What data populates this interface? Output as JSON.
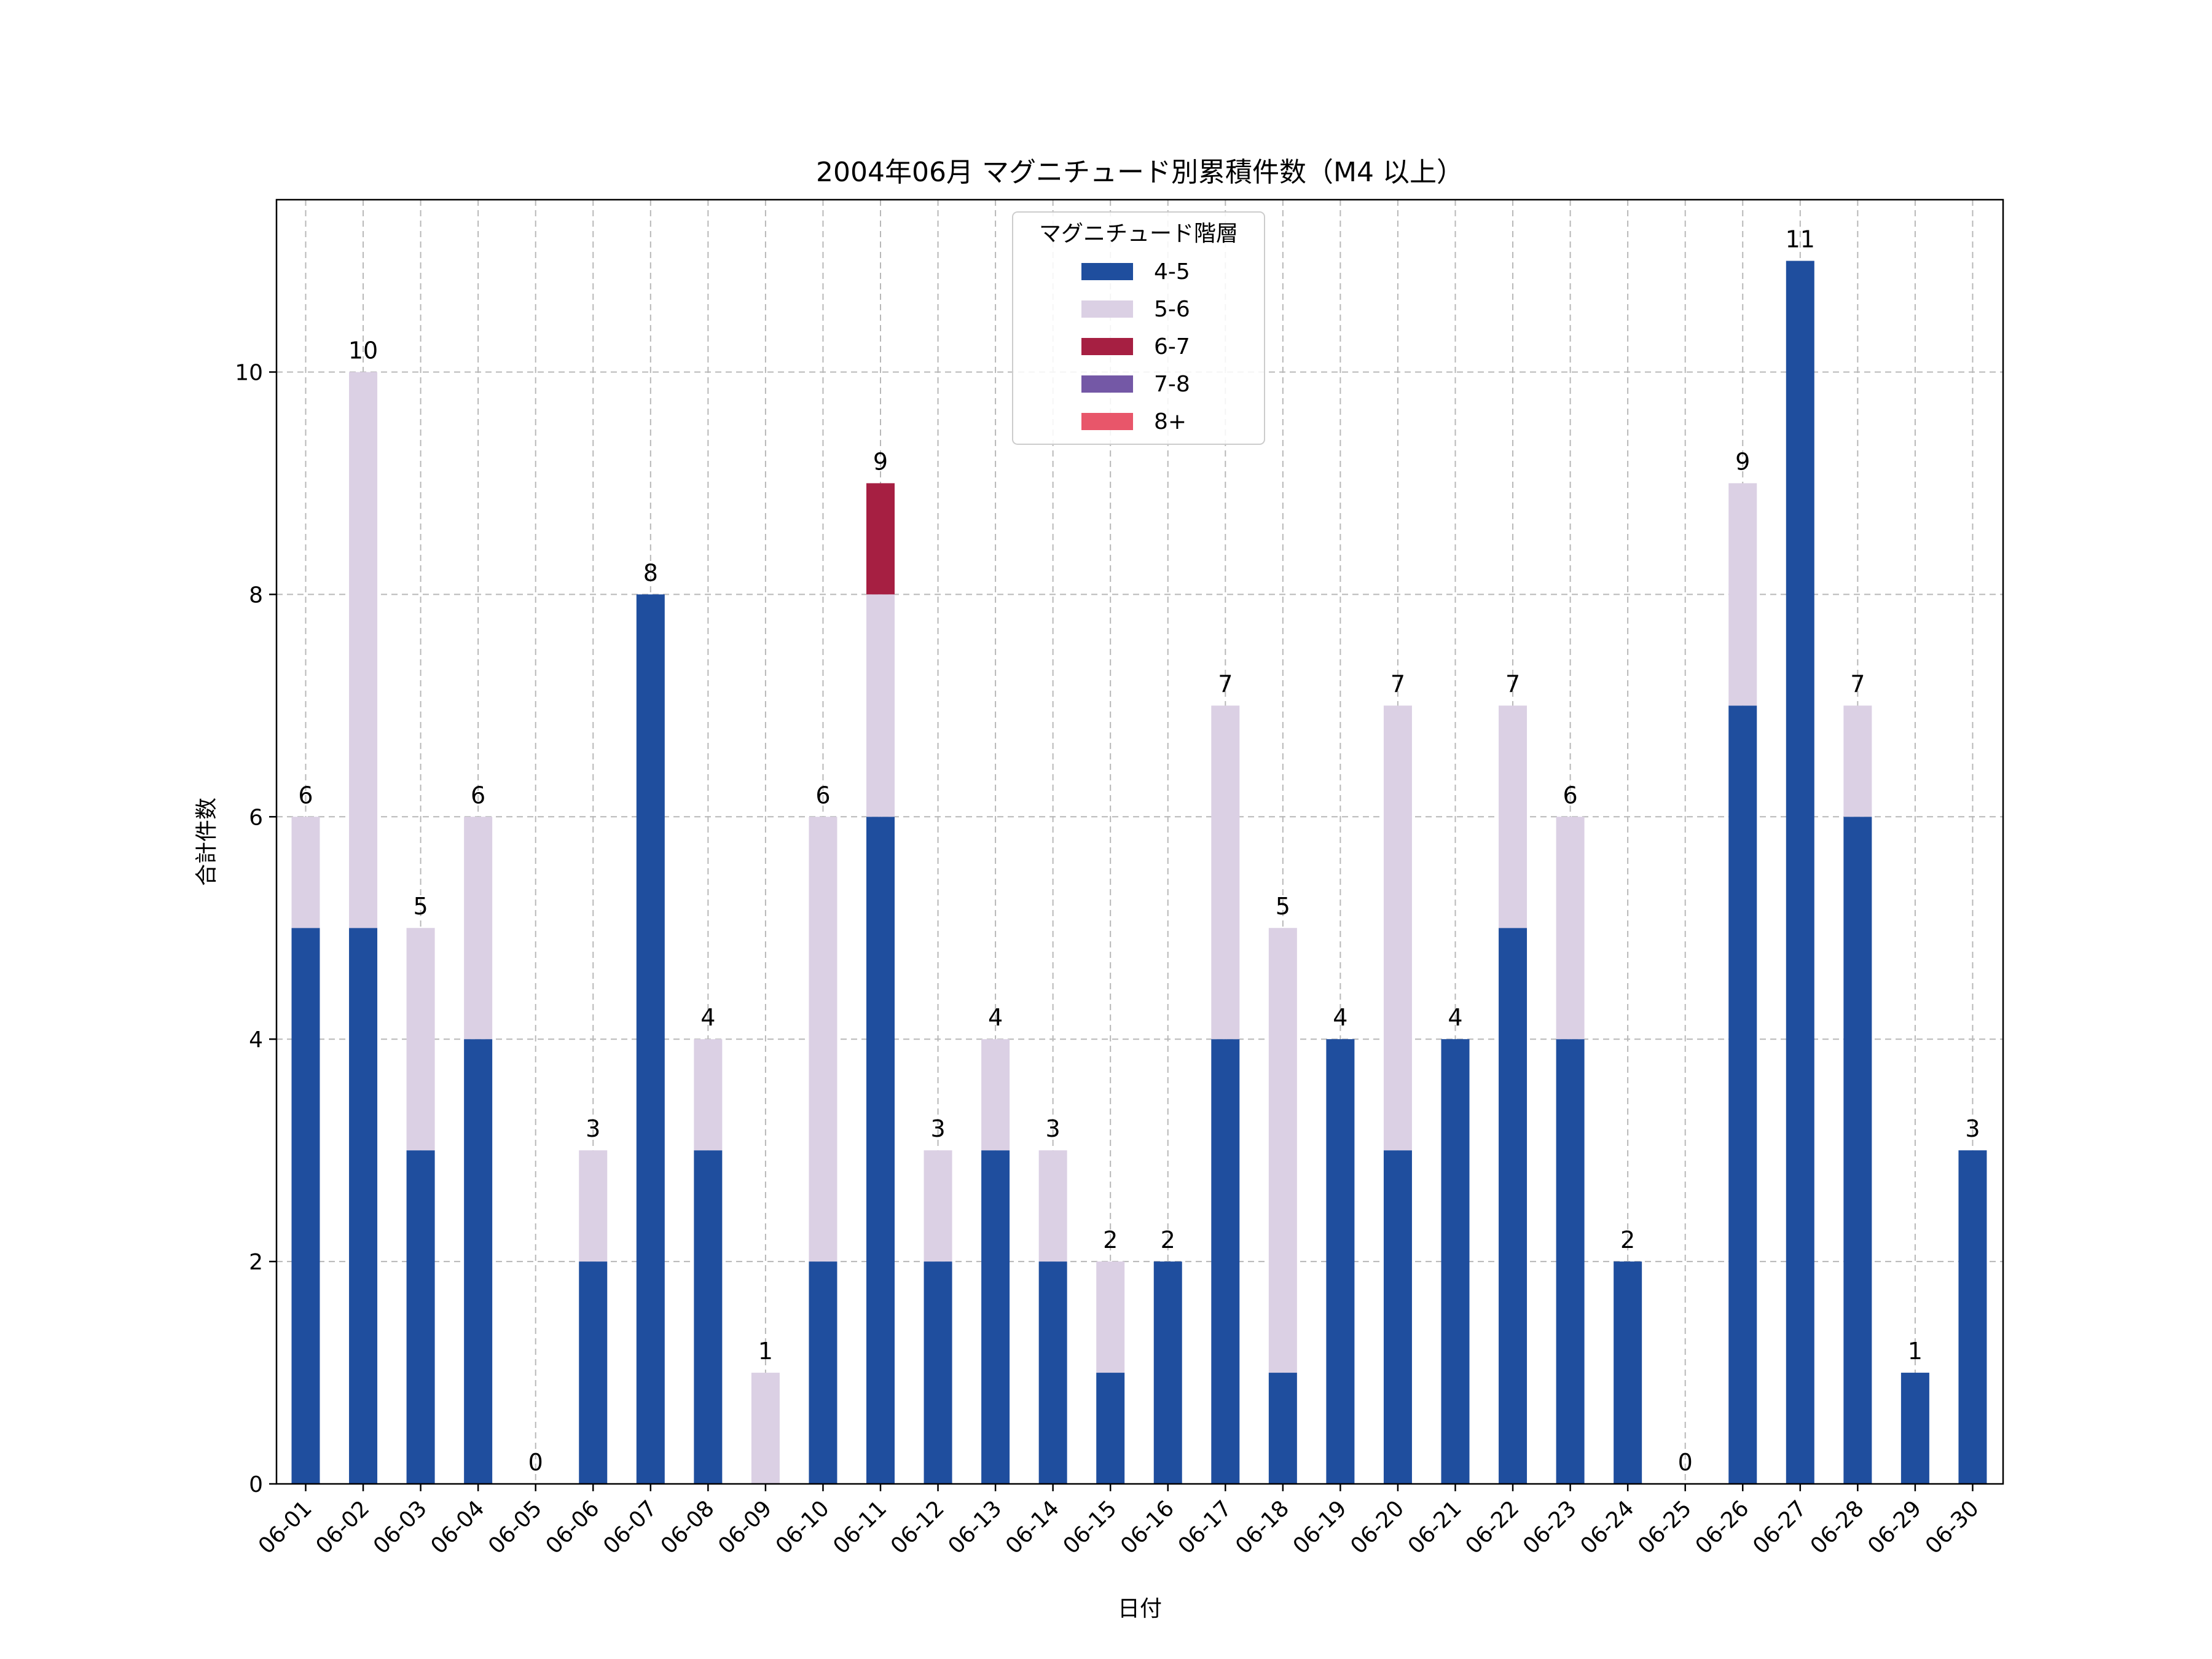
{
  "chart_data": {
    "type": "bar",
    "stacked": true,
    "title": "2004年06月 マグニチュード別累積件数（M4 以上）",
    "xlabel": "日付",
    "ylabel": "合計件数",
    "ylim": [
      0,
      11.55
    ],
    "yticks": [
      0,
      2,
      4,
      6,
      8,
      10
    ],
    "grid": true,
    "legend": {
      "title": "マグニチュード階層",
      "position": "top-center"
    },
    "categories": [
      "06-01",
      "06-02",
      "06-03",
      "06-04",
      "06-05",
      "06-06",
      "06-07",
      "06-08",
      "06-09",
      "06-10",
      "06-11",
      "06-12",
      "06-13",
      "06-14",
      "06-15",
      "06-16",
      "06-17",
      "06-18",
      "06-19",
      "06-20",
      "06-21",
      "06-22",
      "06-23",
      "06-24",
      "06-25",
      "06-26",
      "06-27",
      "06-28",
      "06-29",
      "06-30"
    ],
    "series": [
      {
        "name": "4-5",
        "color": "#1f4e9e",
        "values": [
          5,
          5,
          3,
          4,
          0,
          2,
          8,
          3,
          0,
          2,
          6,
          2,
          3,
          2,
          1,
          2,
          4,
          1,
          4,
          3,
          4,
          5,
          4,
          2,
          0,
          7,
          11,
          6,
          1,
          3
        ]
      },
      {
        "name": "5-6",
        "color": "#dbd0e4",
        "values": [
          1,
          5,
          2,
          2,
          0,
          1,
          0,
          1,
          1,
          4,
          2,
          1,
          1,
          1,
          1,
          0,
          3,
          4,
          0,
          4,
          0,
          2,
          2,
          0,
          0,
          2,
          0,
          1,
          0,
          0
        ]
      },
      {
        "name": "6-7",
        "color": "#a61f42",
        "values": [
          0,
          0,
          0,
          0,
          0,
          0,
          0,
          0,
          0,
          0,
          1,
          0,
          0,
          0,
          0,
          0,
          0,
          0,
          0,
          0,
          0,
          0,
          0,
          0,
          0,
          0,
          0,
          0,
          0,
          0
        ]
      },
      {
        "name": "7-8",
        "color": "#7458a6",
        "values": [
          0,
          0,
          0,
          0,
          0,
          0,
          0,
          0,
          0,
          0,
          0,
          0,
          0,
          0,
          0,
          0,
          0,
          0,
          0,
          0,
          0,
          0,
          0,
          0,
          0,
          0,
          0,
          0,
          0,
          0
        ]
      },
      {
        "name": "8+",
        "color": "#e8566a",
        "values": [
          0,
          0,
          0,
          0,
          0,
          0,
          0,
          0,
          0,
          0,
          0,
          0,
          0,
          0,
          0,
          0,
          0,
          0,
          0,
          0,
          0,
          0,
          0,
          0,
          0,
          0,
          0,
          0,
          0,
          0
        ]
      }
    ],
    "totals": [
      6,
      10,
      5,
      6,
      0,
      3,
      8,
      4,
      1,
      6,
      9,
      3,
      4,
      3,
      2,
      2,
      7,
      5,
      4,
      7,
      4,
      7,
      6,
      2,
      0,
      9,
      11,
      7,
      1,
      3
    ]
  }
}
